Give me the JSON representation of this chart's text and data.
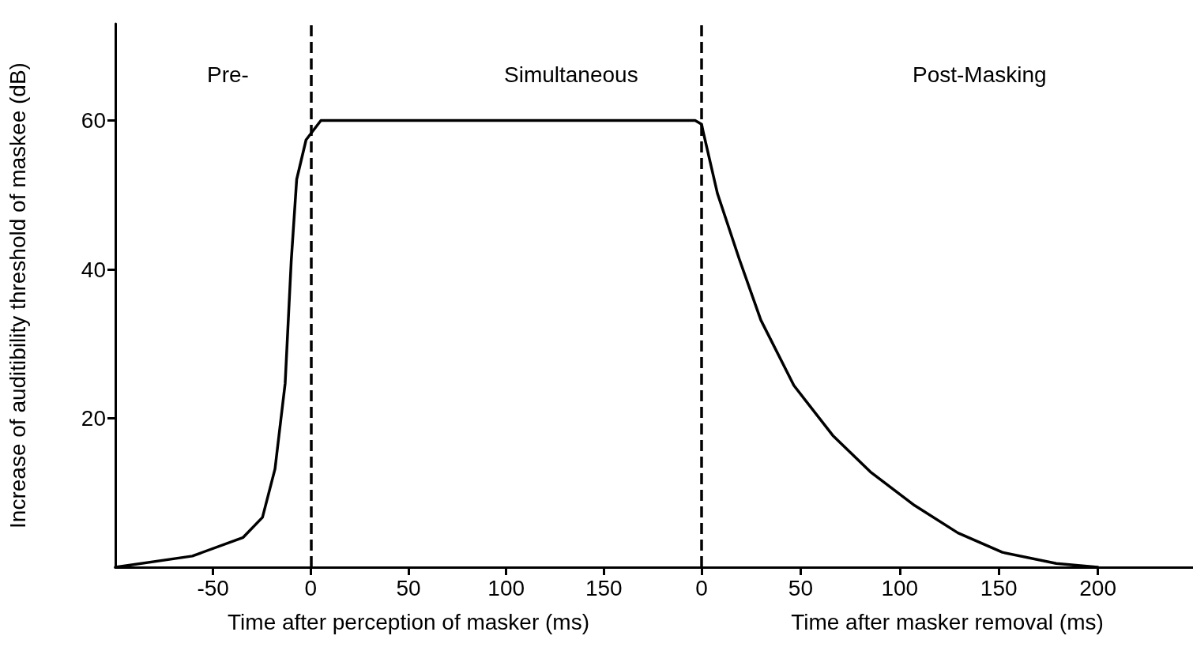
{
  "chart_data": [
    {
      "type": "line",
      "xlabel": "Time after perception of masker (ms)",
      "ylabel": "Increase of auditibility threshold of maskee (dB)",
      "annotations": [
        "Pre-",
        "Simultaneous"
      ],
      "series": [
        {
          "color": "#000000",
          "x": [
            -100,
            -60.6,
            -34.6,
            -24.7,
            -18.3,
            -13.1,
            -10,
            -7.2,
            -2.4,
            5.2,
            100,
            196.7,
            200
          ],
          "values": [
            0,
            1.5,
            4,
            6.7,
            13.2,
            24.7,
            41.1,
            52.1,
            57.4,
            60,
            60,
            60,
            59.5
          ]
        }
      ],
      "xlim": [
        -100,
        200
      ],
      "ylim": [
        0,
        73
      ],
      "xticks": [
        -50,
        0,
        50,
        100,
        150
      ],
      "yticks": [
        20,
        40,
        60
      ],
      "ref_lines": [
        {
          "axis": "x",
          "value": 0,
          "line_style": "dashed",
          "color": "#000000"
        }
      ],
      "marker": "none",
      "line_style": "solid"
    },
    {
      "type": "line",
      "xlabel": "Time after masker removal (ms)",
      "annotations": [
        "Post-Masking"
      ],
      "series": [
        {
          "color": "#000000",
          "x": [
            0,
            0.8,
            8,
            19,
            29.9,
            46.6,
            66.2,
            85.2,
            107.5,
            129.4,
            151.8,
            179,
            200
          ],
          "values": [
            59.5,
            58.5,
            50.2,
            41.4,
            33.2,
            24.4,
            17.7,
            12.8,
            8.3,
            4.6,
            2,
            0.5,
            0
          ]
        }
      ],
      "xlim": [
        0,
        248
      ],
      "ylim": [
        0,
        73
      ],
      "xticks": [
        0,
        50,
        100,
        150,
        200
      ],
      "tick_labels": "x",
      "ref_lines": [
        {
          "axis": "x",
          "value": 0,
          "line_style": "dashed",
          "color": "#000000"
        }
      ],
      "marker": "none",
      "line_style": "solid"
    }
  ]
}
